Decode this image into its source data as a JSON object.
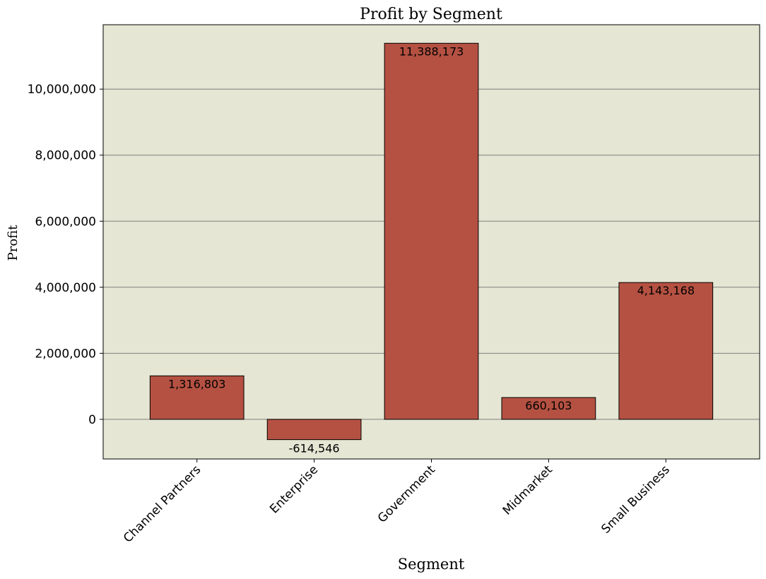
{
  "chart_data": {
    "type": "bar",
    "title": "Profit by Segment",
    "xlabel": "Segment",
    "ylabel": "Profit",
    "categories": [
      "Channel Partners",
      "Enterprise",
      "Government",
      "Midmarket",
      "Small Business"
    ],
    "values": [
      1316803,
      -614546,
      11388173,
      660103,
      4143168
    ],
    "value_labels": [
      "1,316,803",
      "-614,546",
      "11,388,173",
      "660,103",
      "4,143,168"
    ],
    "ylim": [
      -1200000,
      11950000
    ],
    "yticks": [
      0,
      2000000,
      4000000,
      6000000,
      8000000,
      10000000
    ],
    "ytick_labels": [
      "0",
      "2,000,000",
      "4,000,000",
      "6,000,000",
      "8,000,000",
      "10,000,000"
    ],
    "grid": "horizontal",
    "legend": "none",
    "colors": {
      "bar": "#b55142",
      "bar_edge": "#000000",
      "plot_background": "#e5e6d3",
      "grid": "#808080"
    }
  }
}
